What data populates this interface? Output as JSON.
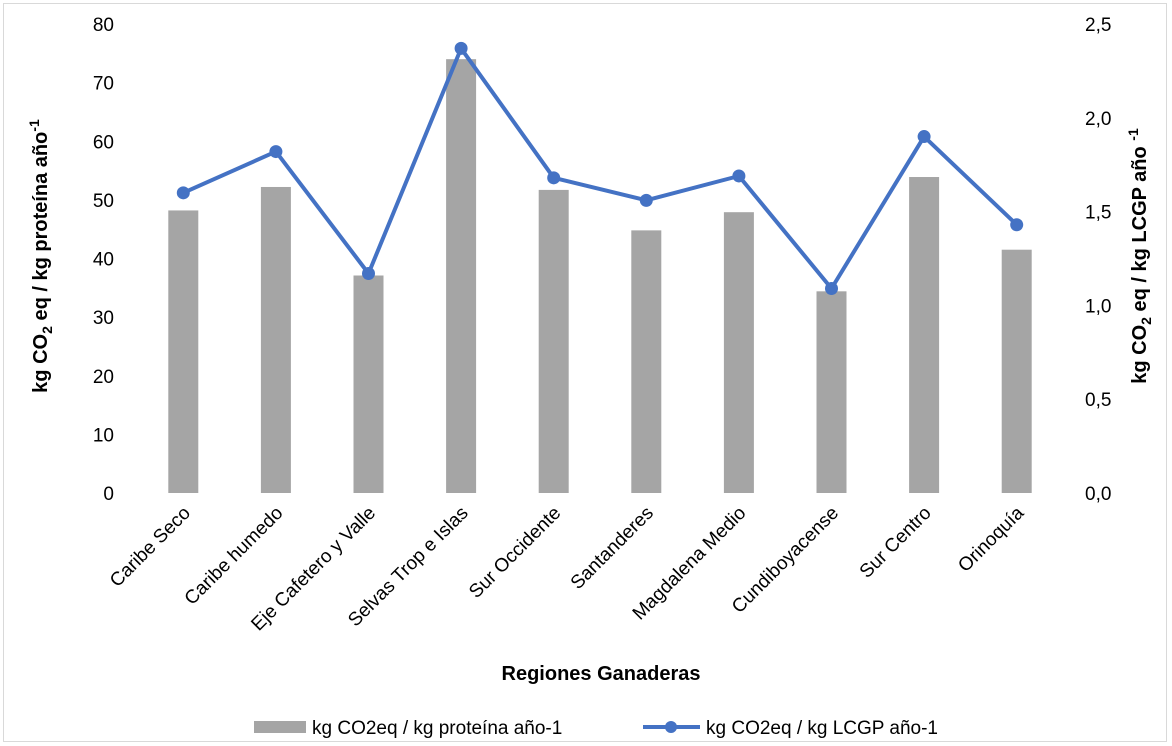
{
  "chart_data": {
    "type": "bar",
    "categories": [
      "Caribe Seco",
      "Caribe humedo",
      "Eje Cafetero y Valle",
      "Selvas Trop e Islas",
      "Sur Occidente",
      "Santanderes",
      "Magdalena Medio",
      "Cundiboyacense",
      "Sur Centro",
      "Orinoquía"
    ],
    "series": [
      {
        "name": "kg CO2eq / kg proteína año-1",
        "type": "bar",
        "axis": "left",
        "color": "#a5a5a5",
        "values": [
          48.2,
          52.2,
          37.1,
          74.0,
          51.7,
          44.8,
          47.9,
          34.4,
          53.9,
          41.5
        ]
      },
      {
        "name": "kg CO2eq / kg LCGP año-1",
        "type": "line",
        "axis": "right",
        "color": "#4472c4",
        "values": [
          1.6,
          1.82,
          1.17,
          2.37,
          1.68,
          1.56,
          1.69,
          1.09,
          1.9,
          1.43
        ]
      }
    ],
    "ylim_left": [
      0,
      80
    ],
    "ylim_right": [
      0,
      2.5
    ],
    "left_ticks": [
      "0",
      "10",
      "20",
      "30",
      "40",
      "50",
      "60",
      "70",
      "80"
    ],
    "right_ticks": [
      "0,0",
      "0,5",
      "1,0",
      "1,5",
      "2,0",
      "2,5"
    ],
    "xlabel": "Regiones Ganaderas",
    "ylabel_left": {
      "pre": "kg CO",
      "sub": "2",
      "mid": " eq / kg proteína año",
      "sup": "-1"
    },
    "ylabel_right": {
      "pre": "kg CO",
      "sub": "2",
      "mid": " eq / kg LCGP año ",
      "sup": "-1"
    },
    "legend_position": "bottom",
    "grid": false
  }
}
